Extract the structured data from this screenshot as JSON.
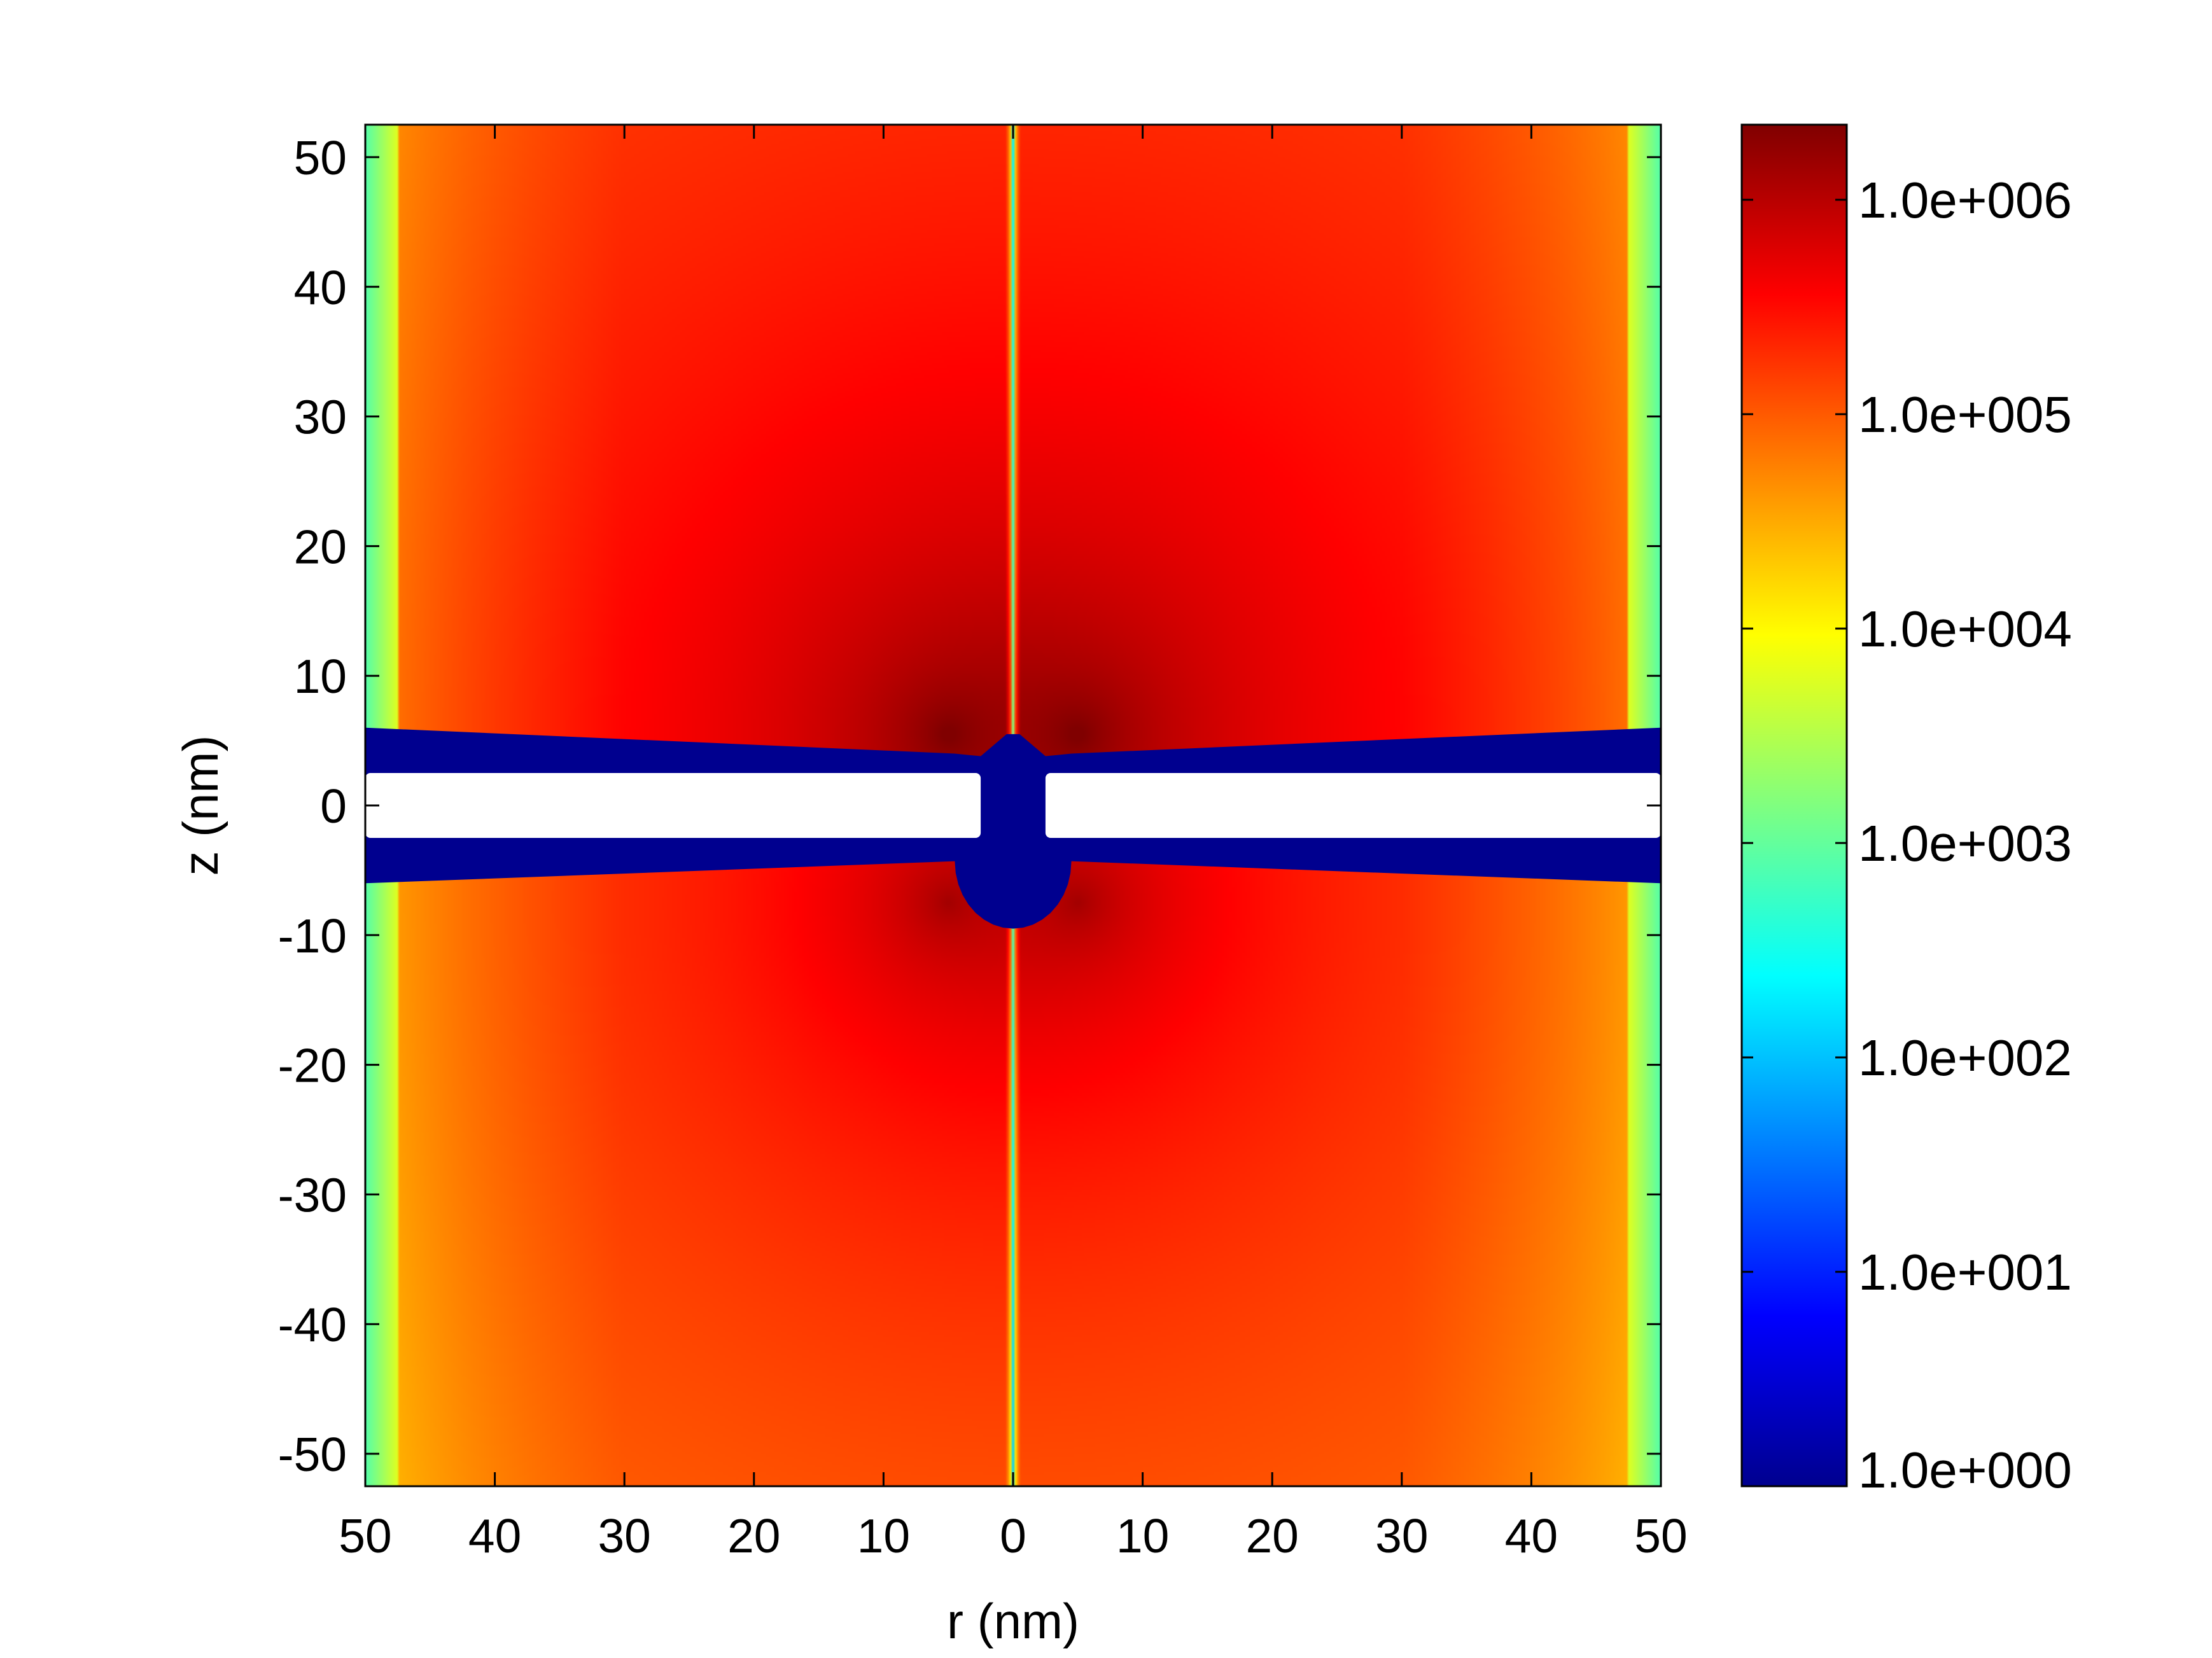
{
  "chart_data": {
    "type": "heatmap",
    "title": "",
    "xlabel": "r (nm)",
    "ylabel": "z (nm)",
    "xlim": [
      -50,
      50
    ],
    "ylim": [
      -52.5,
      52.5
    ],
    "x_ticks": [
      -50,
      -40,
      -30,
      -20,
      -10,
      0,
      10,
      20,
      30,
      40,
      50
    ],
    "x_tick_labels": [
      "50",
      "40",
      "30",
      "20",
      "10",
      "0",
      "10",
      "20",
      "30",
      "40",
      "50"
    ],
    "y_ticks": [
      50,
      40,
      30,
      20,
      10,
      0,
      -10,
      -20,
      -30,
      -40,
      -50
    ],
    "y_tick_labels": [
      "50",
      "40",
      "30",
      "20",
      "10",
      "0",
      "-10",
      "-20",
      "-30",
      "-40",
      "-50"
    ],
    "colormap": "jet",
    "color_scale": "log",
    "colorbar": {
      "range_exponent": [
        0,
        6.35
      ],
      "ticks": [
        6,
        5,
        4,
        3,
        2,
        1,
        0
      ],
      "tick_labels": [
        "1.0e+006",
        "1.0e+005",
        "1.0e+004",
        "1.0e+003",
        "1.0e+002",
        "1.0e+001",
        "1.0e+000"
      ]
    },
    "field_peaks": [
      {
        "r": -5,
        "z": 5.5,
        "value": 2000000
      },
      {
        "r": 5,
        "z": 5.5,
        "value": 2000000
      }
    ],
    "structures": {
      "membrane_band_z": [
        -6,
        6
      ],
      "slit_z": [
        -2.5,
        2.5
      ],
      "pore_radius_nm": 2.5,
      "membrane_color": "#00008f",
      "slit_color": "#ffffff"
    },
    "grid": false,
    "legend": "none"
  }
}
